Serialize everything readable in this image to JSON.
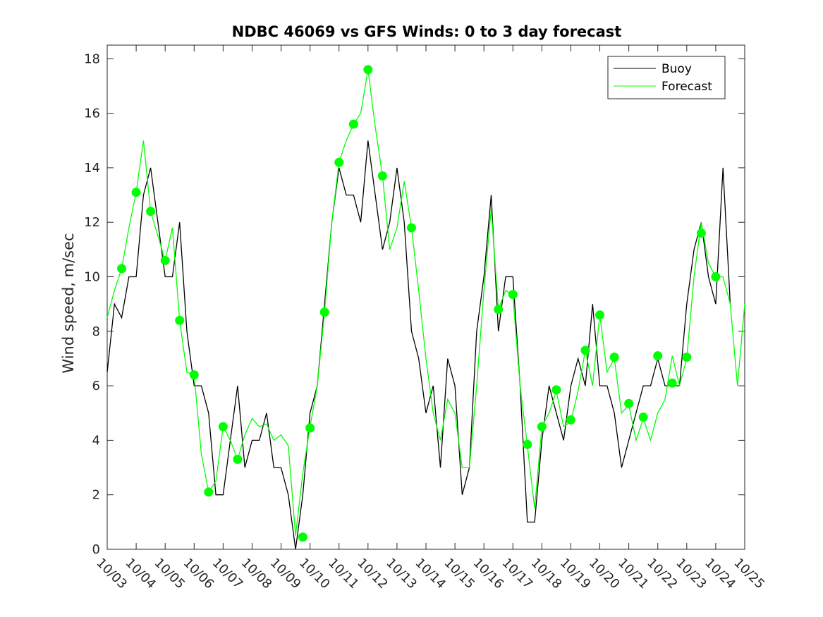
{
  "chart_data": {
    "type": "line",
    "title": "NDBC 46069 vs GFS Winds: 0 to 3 day forecast",
    "xlabel": "",
    "ylabel": "Wind speed, m/sec",
    "ylim": [
      0,
      18.5
    ],
    "yticks": [
      0,
      2,
      4,
      6,
      8,
      10,
      12,
      14,
      16,
      18
    ],
    "xlim_days": [
      3,
      25
    ],
    "xticks": [
      "10/03",
      "10/04",
      "10/05",
      "10/06",
      "10/07",
      "10/08",
      "10/09",
      "10/10",
      "10/11",
      "10/12",
      "10/13",
      "10/14",
      "10/15",
      "10/16",
      "10/17",
      "10/18",
      "10/19",
      "10/20",
      "10/21",
      "10/22",
      "10/23",
      "10/24",
      "10/25"
    ],
    "grid": false,
    "legend_position": "top-right",
    "colors": {
      "buoy": "#000000",
      "forecast": "#00ff00",
      "axis": "#262626"
    },
    "series": [
      {
        "name": "Buoy",
        "x": [
          3.0,
          3.25,
          3.5,
          3.75,
          4.0,
          4.25,
          4.5,
          4.75,
          5.0,
          5.25,
          5.5,
          5.75,
          6.0,
          6.25,
          6.5,
          6.75,
          7.0,
          7.25,
          7.5,
          7.75,
          8.0,
          8.25,
          8.5,
          8.75,
          9.0,
          9.25,
          9.5,
          9.75,
          10.0,
          10.25,
          10.5,
          10.75,
          11.0,
          11.25,
          11.5,
          11.75,
          12.0,
          12.25,
          12.5,
          12.75,
          13.0,
          13.25,
          13.5,
          13.75,
          14.0,
          14.25,
          14.5,
          14.75,
          15.0,
          15.25,
          15.5,
          15.75,
          16.0,
          16.25,
          16.5,
          16.75,
          17.0,
          17.25,
          17.5,
          17.75,
          18.0,
          18.25,
          18.5,
          18.75,
          19.0,
          19.25,
          19.5,
          19.75,
          20.0,
          20.25,
          20.5,
          20.75,
          21.0,
          21.25,
          21.5,
          21.75,
          22.0,
          22.25,
          22.5,
          22.75,
          23.0,
          23.25,
          23.5,
          23.75,
          24.0,
          24.25,
          24.5
        ],
        "values": [
          6.5,
          9,
          8.5,
          10,
          10,
          13,
          14,
          12,
          10,
          10,
          12,
          8,
          6,
          6,
          5,
          2,
          2,
          4,
          6,
          3,
          4,
          4,
          5,
          3,
          3,
          2,
          0,
          2,
          5,
          6,
          9,
          12,
          14,
          13,
          13,
          12,
          15,
          13,
          11,
          12,
          14,
          12,
          8,
          7,
          5,
          6,
          3,
          7,
          6,
          2,
          3,
          8,
          10,
          13,
          8,
          10,
          10,
          6,
          1,
          1,
          4,
          6,
          5,
          4,
          6,
          7,
          6,
          9,
          6,
          6,
          5,
          3,
          4,
          5,
          6,
          6,
          7,
          6,
          6,
          6,
          9,
          11,
          12,
          10,
          9,
          14,
          9
        ]
      },
      {
        "name": "Forecast",
        "x": [
          3.0,
          3.25,
          3.5,
          3.75,
          4.0,
          4.25,
          4.5,
          4.75,
          5.0,
          5.25,
          5.5,
          5.75,
          6.0,
          6.25,
          6.5,
          6.75,
          7.0,
          7.25,
          7.5,
          7.75,
          8.0,
          8.25,
          8.5,
          8.75,
          9.0,
          9.25,
          9.5,
          9.75,
          10.0,
          10.25,
          10.5,
          10.75,
          11.0,
          11.25,
          11.5,
          11.75,
          12.0,
          12.25,
          12.5,
          12.75,
          13.0,
          13.25,
          13.5,
          13.75,
          14.0,
          14.25,
          14.5,
          14.75,
          15.0,
          15.25,
          15.5,
          15.75,
          16.0,
          16.25,
          16.5,
          16.75,
          17.0,
          17.25,
          17.5,
          17.75,
          18.0,
          18.25,
          18.5,
          18.75,
          19.0,
          19.25,
          19.5,
          19.75,
          20.0,
          20.25,
          20.5,
          20.75,
          21.0,
          21.25,
          21.5,
          21.75,
          22.0,
          22.25,
          22.5,
          22.75,
          23.0,
          23.25,
          23.5,
          23.75,
          24.0,
          24.25,
          24.5,
          24.75,
          25.0
        ],
        "values": [
          8.5,
          9.5,
          10.3,
          11.8,
          13.1,
          15,
          12.4,
          11.5,
          10.6,
          11.8,
          8.4,
          6.5,
          6.4,
          3.5,
          2.1,
          2.5,
          4.5,
          4,
          3.3,
          4.2,
          4.8,
          4.5,
          4.6,
          4,
          4.2,
          3.8,
          0.5,
          2.8,
          4.5,
          6,
          8.7,
          12,
          14.2,
          15,
          15.6,
          16,
          17.6,
          15.5,
          13.7,
          11,
          11.8,
          13.5,
          11.8,
          9.5,
          7,
          5,
          4,
          5.5,
          5,
          3,
          3,
          6,
          9.5,
          12.5,
          8.8,
          9.5,
          9.3,
          6,
          3.8,
          1.5,
          4.5,
          5,
          5.8,
          4.5,
          4.7,
          5.8,
          7.3,
          6,
          8.6,
          6.5,
          7,
          5,
          5.3,
          4,
          4.8,
          4,
          5,
          5.5,
          7.1,
          6,
          7,
          10,
          12,
          10.5,
          10,
          10,
          9,
          6,
          9
        ]
      }
    ],
    "markers": {
      "series": "Forecast",
      "x": [
        3.5,
        4.0,
        4.5,
        5.0,
        5.5,
        6.0,
        6.5,
        7.0,
        7.5,
        9.75,
        10.0,
        10.5,
        11.0,
        11.5,
        12.0,
        12.5,
        13.5,
        16.5,
        17.0,
        17.5,
        18.0,
        18.5,
        19.0,
        19.5,
        20.0,
        20.5,
        21.0,
        21.5,
        22.0,
        22.5,
        23.0,
        23.5,
        24.0
      ],
      "values": [
        10.3,
        13.1,
        12.4,
        10.6,
        8.4,
        6.4,
        2.1,
        4.5,
        3.3,
        0.45,
        4.45,
        8.7,
        14.2,
        15.6,
        17.6,
        13.7,
        11.8,
        8.8,
        9.35,
        3.85,
        4.5,
        5.85,
        4.75,
        7.3,
        8.6,
        7.05,
        5.35,
        4.85,
        7.1,
        6.1,
        7.05,
        11.6,
        10.0
      ]
    },
    "legend": [
      "Buoy",
      "Forecast"
    ]
  }
}
